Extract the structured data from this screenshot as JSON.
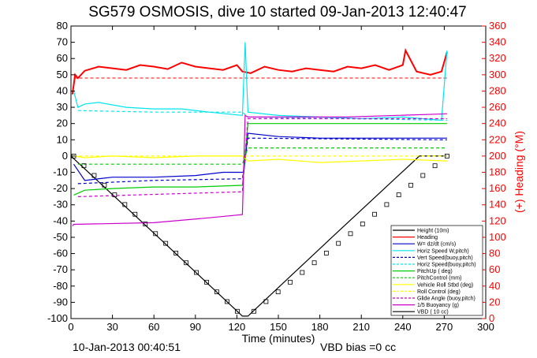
{
  "chart_data": {
    "type": "line",
    "title": "SG579 OSMOSIS, dive 10 started 09-Jan-2013 12:40:47",
    "xlabel": "Time (minutes)",
    "ylabel_right": "(+) Heading (°M)",
    "footer_left": "10-Jan-2013 00:40:51",
    "footer_right": "VBD bias =0 cc",
    "xlim": [
      0,
      300
    ],
    "ylim": [
      -100,
      80
    ],
    "ylim_right": [
      0,
      360
    ],
    "x_ticks": [
      "0",
      "30",
      "60",
      "90",
      "120",
      "150",
      "180",
      "210",
      "240",
      "270",
      "300"
    ],
    "y_ticks": [
      "80",
      "70",
      "60",
      "50",
      "40",
      "30",
      "20",
      "10",
      "0",
      "-10",
      "-20",
      "-30",
      "-40",
      "-50",
      "-60",
      "-70",
      "-80",
      "-90",
      "-100"
    ],
    "y_right_ticks": [
      "360",
      "340",
      "320",
      "300",
      "280",
      "260",
      "240",
      "220",
      "200",
      "180",
      "160",
      "140",
      "120",
      "100",
      "80",
      "60",
      "40",
      "20",
      "0"
    ],
    "legend_position": "bottom-right",
    "series": [
      {
        "name": "Height (10m)",
        "color": "#000000",
        "style": "solid",
        "x": [
          0,
          62,
          124,
          128,
          190,
          252,
          272
        ],
        "y": [
          0,
          -49,
          -98.5,
          -98.5,
          -49,
          0,
          0
        ]
      },
      {
        "name": "Heading",
        "color": "#ff0000",
        "style": "solid",
        "axis": "right",
        "x": [
          1,
          3,
          5,
          10,
          20,
          30,
          40,
          50,
          60,
          70,
          80,
          90,
          100,
          110,
          120,
          124,
          130,
          140,
          150,
          160,
          170,
          180,
          190,
          200,
          210,
          220,
          230,
          240,
          242,
          250,
          260,
          268,
          272
        ],
        "y": [
          276,
          300,
          296,
          305,
          310,
          308,
          306,
          312,
          310,
          307,
          315,
          310,
          308,
          306,
          312,
          304,
          302,
          310,
          306,
          304,
          308,
          306,
          304,
          310,
          308,
          312,
          306,
          312,
          330,
          304,
          300,
          304,
          328
        ]
      },
      {
        "name": "W= dz/dt (cm/s)",
        "color": "#0000cc",
        "style": "solid",
        "x": [
          2,
          10,
          30,
          60,
          90,
          110,
          125,
          128,
          150,
          180,
          210,
          240,
          272
        ],
        "y": [
          -5,
          -15,
          -13,
          -13,
          -12,
          -10,
          -10,
          14,
          12,
          11,
          11,
          11,
          11
        ]
      },
      {
        "name": "Horiz Speed W,pitch)",
        "color": "#00e5ee",
        "style": "solid",
        "x": [
          2,
          5,
          10,
          20,
          40,
          60,
          80,
          100,
          124,
          126,
          128,
          150,
          180,
          210,
          240,
          268,
          272
        ],
        "y": [
          40,
          30,
          32,
          33,
          30,
          29,
          29,
          27,
          25,
          70,
          27,
          25,
          24,
          23,
          24,
          22,
          65
        ]
      },
      {
        "name": "Vert Speed(buoy,pitch)",
        "color": "#0000cc",
        "style": "dashed",
        "x": [
          5,
          60,
          124,
          128,
          272
        ],
        "y": [
          -17,
          -15,
          -14,
          11,
          10
        ]
      },
      {
        "name": "Horiz Speed(buoy,pitch)",
        "color": "#00e5ee",
        "style": "dashed",
        "x": [
          5,
          60,
          124,
          128,
          272
        ],
        "y": [
          28,
          27,
          27,
          24,
          22
        ]
      },
      {
        "name": "PitchUp ( deg)",
        "color": "#00cc00",
        "style": "solid",
        "x": [
          2,
          10,
          30,
          60,
          90,
          124,
          128,
          150,
          200,
          272
        ],
        "y": [
          -24,
          -21,
          -20,
          -19,
          -19,
          -18,
          20,
          20,
          20,
          20
        ]
      },
      {
        "name": "PitchControl (mm)",
        "color": "#00cc00",
        "style": "dashed",
        "x": [
          5,
          124,
          128,
          272
        ],
        "y": [
          -5,
          -5,
          5,
          5
        ]
      },
      {
        "name": "Vehicle Roll Stbd (deg)",
        "color": "#ffff00",
        "style": "solid",
        "x": [
          2,
          10,
          30,
          60,
          90,
          124,
          128,
          150,
          180,
          210,
          240,
          272
        ],
        "y": [
          0,
          -1,
          0,
          -1,
          0,
          0,
          -3,
          -2,
          -4,
          -3,
          -2,
          -3
        ]
      },
      {
        "name": "Roll Control (deg)",
        "color": "#ffff00",
        "style": "dashed",
        "x": [
          2,
          272
        ],
        "y": [
          0,
          0
        ]
      },
      {
        "name": "Glide Angle (buoy,pitch)",
        "color": "#cc00cc",
        "style": "dashed",
        "x": [
          5,
          124,
          128,
          272
        ],
        "y": [
          -25,
          -22,
          23,
          23
        ]
      },
      {
        "name": "1/5 Buoyancy (g)",
        "color": "#cc00cc",
        "style": "solid",
        "x": [
          1,
          2,
          60,
          100,
          124,
          126,
          128,
          200,
          272
        ],
        "y": [
          -43,
          -42,
          -41,
          -38,
          -36,
          25,
          24,
          24,
          26
        ]
      },
      {
        "name": "VBD ( 10 cc)",
        "color": "#000000",
        "style": "solid",
        "x": [],
        "y": []
      }
    ],
    "reference_lines": [
      {
        "name": "Heading target",
        "color": "#ff0000",
        "style": "dashed",
        "axis": "right",
        "value": 296
      }
    ]
  }
}
